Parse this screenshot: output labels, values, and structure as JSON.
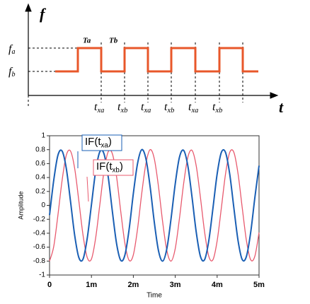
{
  "diagram": {
    "y_label": "f",
    "x_label": "t",
    "levels": [
      {
        "base": "f",
        "sub": "a"
      },
      {
        "base": "f",
        "sub": "b"
      }
    ],
    "periods": [
      "Ta",
      "Tb"
    ],
    "switch_labels": [
      {
        "base": "t",
        "sub": "xa"
      },
      {
        "base": "t",
        "sub": "xb"
      },
      {
        "base": "t",
        "sub": "xa"
      },
      {
        "base": "t",
        "sub": "xb"
      },
      {
        "base": "t",
        "sub": "xa"
      },
      {
        "base": "t",
        "sub": "xb"
      }
    ]
  },
  "chart_data": {
    "type": "line",
    "x_label": "Time",
    "y_label": "Amplitude",
    "xlim": [
      0,
      0.005
    ],
    "xticks": [
      0,
      {
        "value": 0.001,
        "label": "1m"
      },
      {
        "value": 0.002,
        "label": "2m"
      },
      {
        "value": 0.003,
        "label": "3m"
      },
      {
        "value": 0.004,
        "label": "4m"
      },
      {
        "value": 0.005,
        "label": "5m"
      }
    ],
    "ylim": [
      -1,
      1
    ],
    "yticks": [
      -1,
      -0.8,
      -0.6,
      -0.4,
      -0.2,
      0,
      0.2,
      0.4,
      0.6,
      0.8,
      1
    ],
    "x": [
      0,
      0.0001,
      0.0002,
      0.0003,
      0.0004,
      0.0005,
      0.0006,
      0.0007,
      0.0008,
      0.0009,
      0.001,
      0.0011,
      0.0012,
      0.0013,
      0.0014,
      0.0015,
      0.0016,
      0.0017,
      0.0018,
      0.0019,
      0.002,
      0.0021,
      0.0022,
      0.0023,
      0.0024,
      0.0025,
      0.0026,
      0.0027,
      0.0028,
      0.0029,
      0.003,
      0.0031,
      0.0032,
      0.0033,
      0.0034,
      0.0035,
      0.0036,
      0.0037,
      0.0038,
      0.0039,
      0.004,
      0.0041,
      0.0042,
      0.0043,
      0.0044,
      0.0045,
      0.0046,
      0.0047,
      0.0048,
      0.0049,
      0.005
    ],
    "series": [
      {
        "color": "#1a5fb4",
        "values": [
          -0.14,
          0.36,
          0.72,
          0.78,
          0.53,
          0.06,
          -0.43,
          -0.75,
          -0.77,
          -0.47,
          0.01,
          0.49,
          0.77,
          0.74,
          0.41,
          -0.09,
          -0.55,
          -0.79,
          -0.71,
          -0.34,
          0.17,
          0.6,
          0.8,
          0.67,
          0.27,
          -0.24,
          -0.65,
          -0.8,
          -0.62,
          -0.19,
          0.31,
          0.69,
          0.79,
          0.57,
          0.12,
          -0.38,
          -0.73,
          -0.78,
          -0.51,
          -0.04,
          0.45,
          0.76,
          0.76,
          0.45,
          -0.04,
          -0.51,
          -0.78,
          -0.73,
          -0.39,
          0.11,
          0.57
        ]
      },
      {
        "color": "#e85a6e",
        "values": [
          -0.8,
          -0.59,
          -0.14,
          0.36,
          0.72,
          0.78,
          0.53,
          0.06,
          -0.43,
          -0.75,
          -0.77,
          -0.47,
          0.01,
          0.49,
          0.77,
          0.74,
          0.41,
          -0.09,
          -0.55,
          -0.79,
          -0.71,
          -0.34,
          0.17,
          0.6,
          0.8,
          0.67,
          0.27,
          -0.24,
          -0.65,
          -0.8,
          -0.62,
          -0.19,
          0.31,
          0.69,
          0.79,
          0.57,
          0.12,
          -0.38,
          -0.73,
          -0.78,
          -0.51,
          -0.04,
          0.45,
          0.76,
          0.76,
          0.45,
          -0.04,
          -0.51,
          -0.78,
          -0.73,
          -0.39
        ]
      }
    ],
    "annotations": [
      {
        "base": "IF(t",
        "sub": "xa",
        "tail": ")"
      },
      {
        "base": "IF(t",
        "sub": "xb",
        "tail": ")"
      }
    ]
  }
}
